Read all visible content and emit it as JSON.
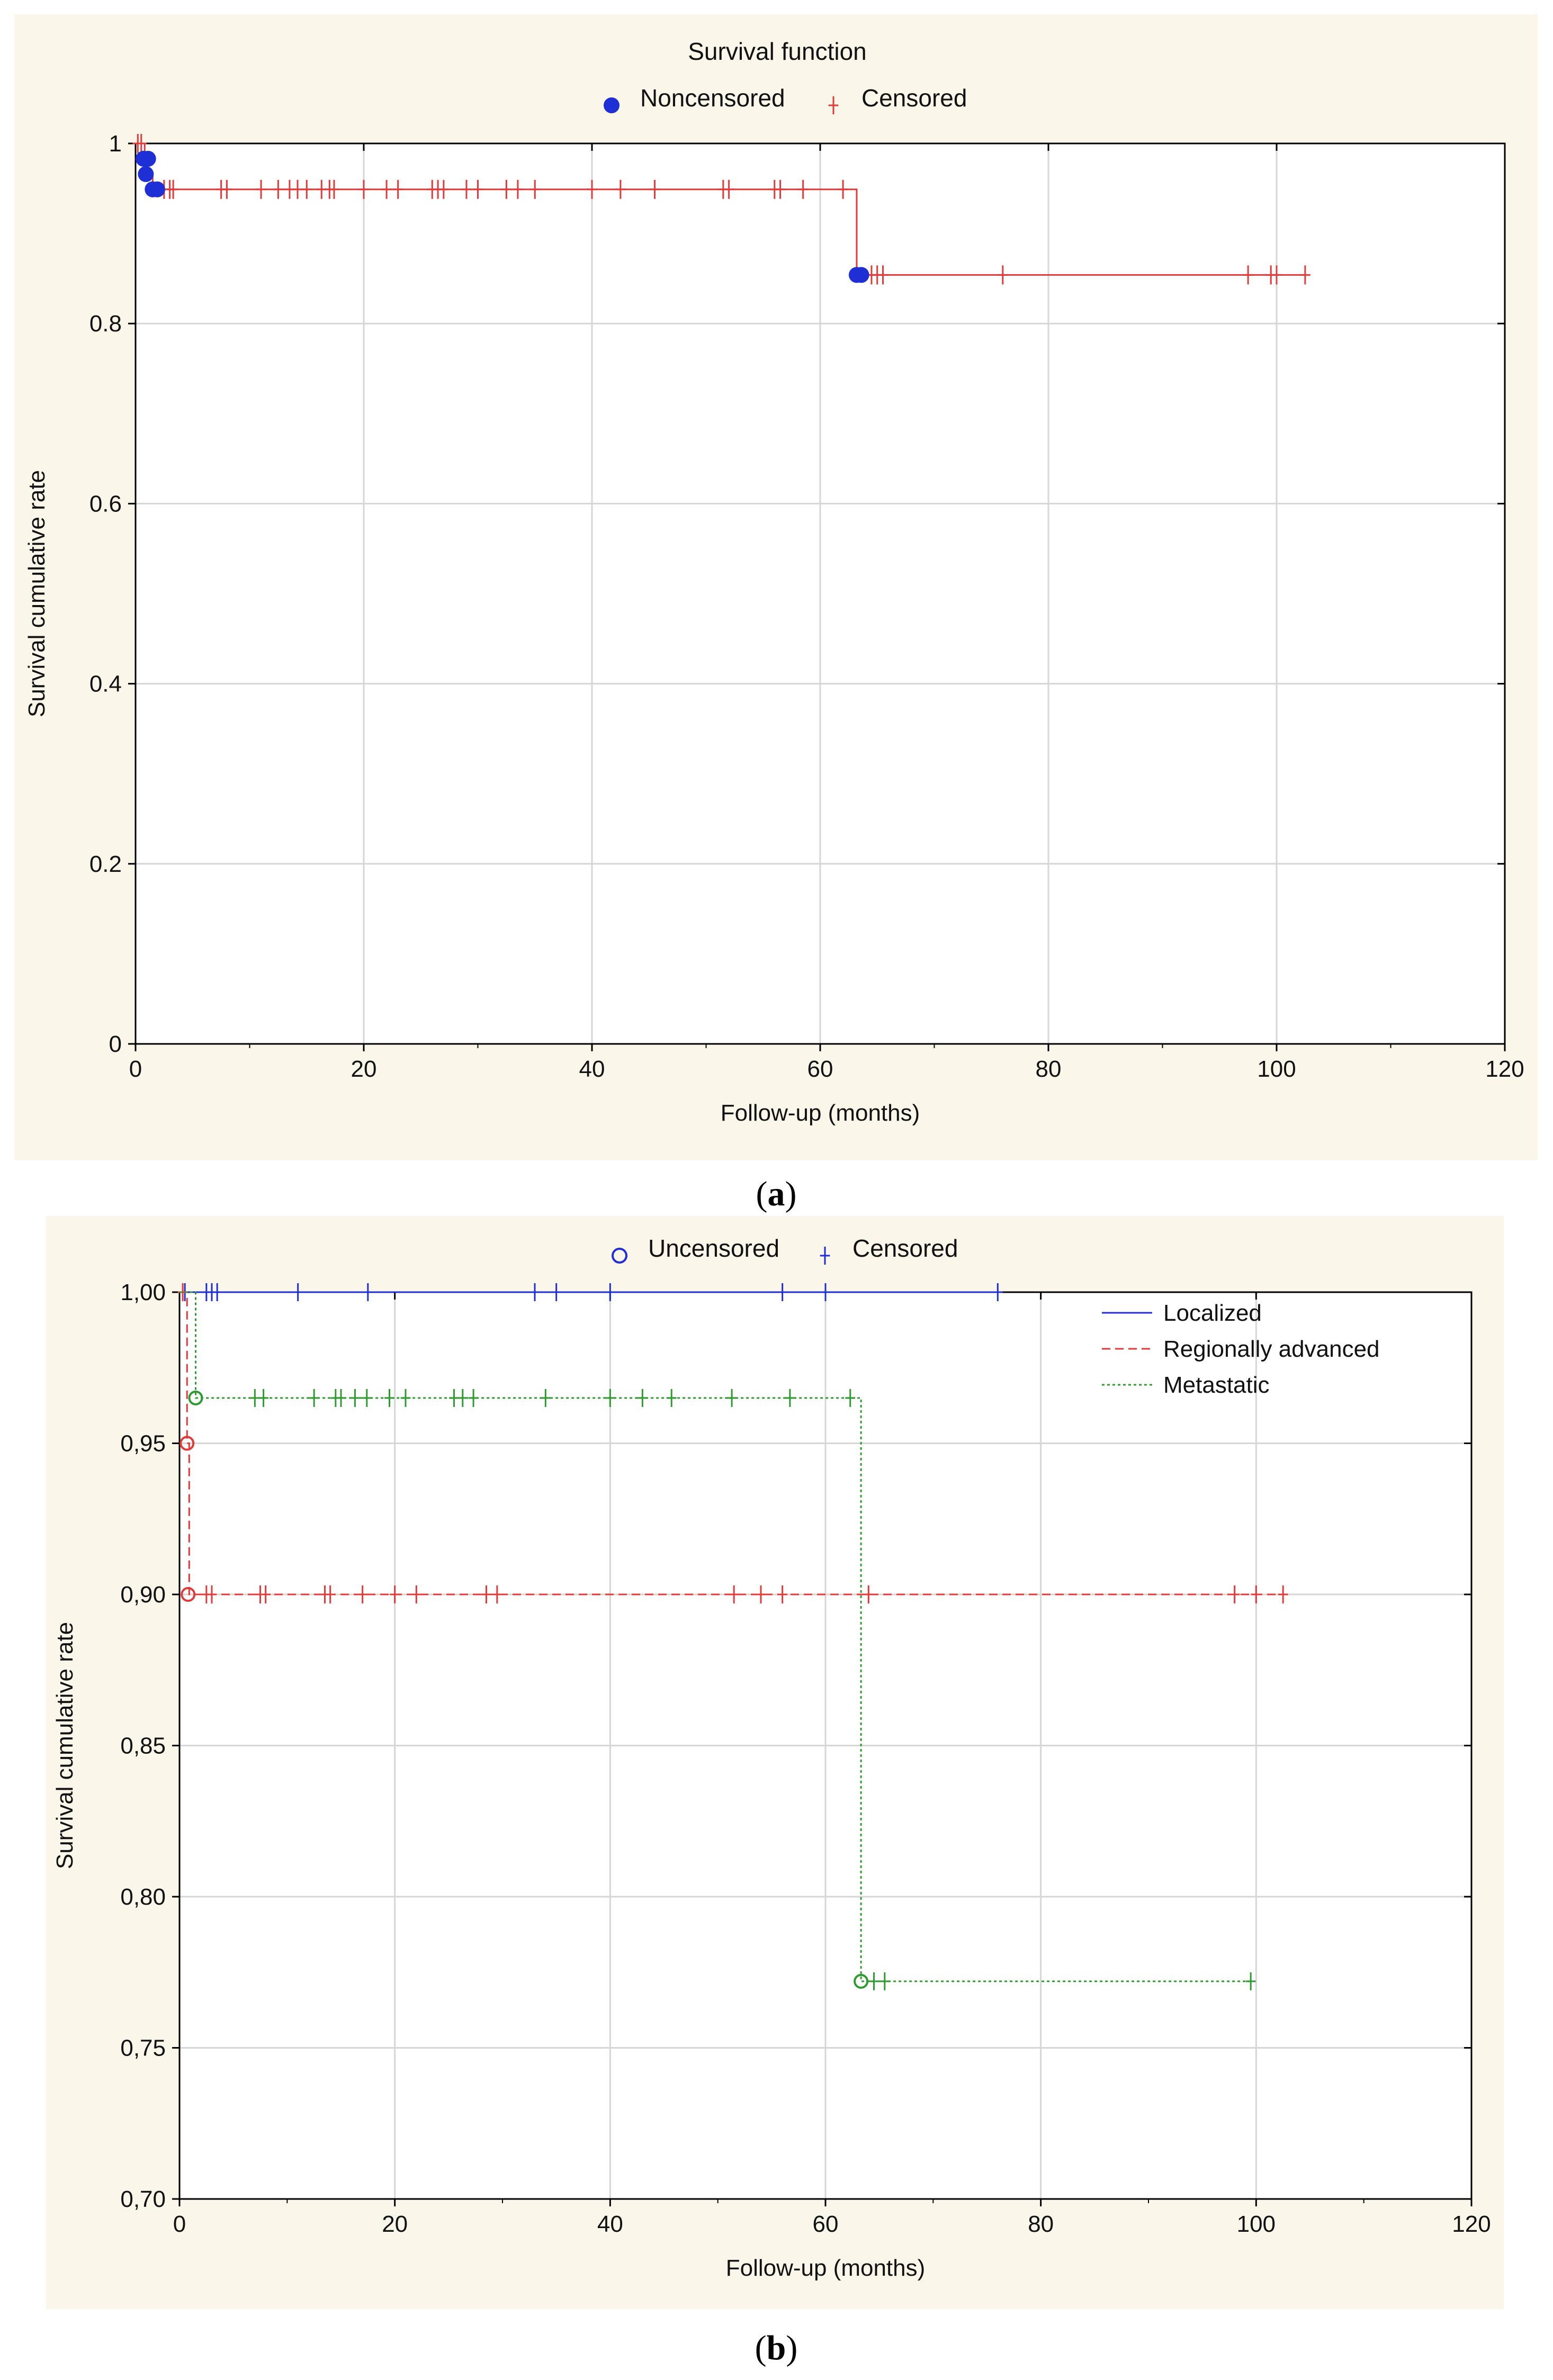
{
  "panel_a": {
    "caption_open": "(",
    "caption_letter": "a",
    "caption_close": ")"
  },
  "panel_b": {
    "caption_open": "(",
    "caption_letter": "b",
    "caption_close": ")"
  },
  "chart_data": [
    {
      "type": "line",
      "subtype": "kaplan-meier-survival",
      "title": "Survival function",
      "xlabel": "Follow-up (months)",
      "ylabel": "Survival cumulative rate",
      "xlim": [
        0,
        120
      ],
      "ylim": [
        0,
        1
      ],
      "x_ticks": [
        0,
        20,
        40,
        60,
        80,
        100,
        120
      ],
      "x_tick_labels": [
        "0",
        "20",
        "40",
        "60",
        "80",
        "100",
        "120"
      ],
      "y_ticks": [
        0,
        0.2,
        0.4,
        0.6,
        0.8,
        1
      ],
      "y_tick_labels": [
        "0",
        "0.2",
        "0.4",
        "0.6",
        "0.8",
        "1"
      ],
      "grid": true,
      "legend_position": "top-center",
      "legend": [
        {
          "label": "Noncensored",
          "marker": "filled-circle",
          "color": "#1f2fd6"
        },
        {
          "label": "Censored",
          "marker": "plus",
          "color": "#e03a3a"
        }
      ],
      "series": [
        {
          "line_color": "#e03a3a",
          "step": {
            "x": [
              0,
              0.8,
              1.5,
              63.2,
              102.5
            ],
            "y": [
              1.0,
              0.966,
              0.949,
              0.854,
              0.854
            ]
          },
          "noncensored": {
            "color": "#1f2fd6",
            "points": [
              [
                0.7,
                0.983
              ],
              [
                0.9,
                0.966
              ],
              [
                1.1,
                0.983
              ],
              [
                1.5,
                0.949
              ],
              [
                1.9,
                0.949
              ],
              [
                63.2,
                0.854
              ],
              [
                63.6,
                0.854
              ]
            ]
          },
          "censored": {
            "color": "#e03a3a",
            "points": [
              [
                0.2,
                1.0
              ],
              [
                0.5,
                1.0
              ],
              [
                2.5,
                0.949
              ],
              [
                3.0,
                0.949
              ],
              [
                3.3,
                0.949
              ],
              [
                7.5,
                0.949
              ],
              [
                8.0,
                0.949
              ],
              [
                11,
                0.949
              ],
              [
                12.5,
                0.949
              ],
              [
                13.5,
                0.949
              ],
              [
                14.2,
                0.949
              ],
              [
                15,
                0.949
              ],
              [
                16.3,
                0.949
              ],
              [
                17,
                0.949
              ],
              [
                17.4,
                0.949
              ],
              [
                20,
                0.949
              ],
              [
                22,
                0.949
              ],
              [
                23,
                0.949
              ],
              [
                26,
                0.949
              ],
              [
                26.5,
                0.949
              ],
              [
                27,
                0.949
              ],
              [
                29,
                0.949
              ],
              [
                30,
                0.949
              ],
              [
                32.5,
                0.949
              ],
              [
                33.5,
                0.949
              ],
              [
                35,
                0.949
              ],
              [
                40,
                0.949
              ],
              [
                42.5,
                0.949
              ],
              [
                45.5,
                0.949
              ],
              [
                51.5,
                0.949
              ],
              [
                52,
                0.949
              ],
              [
                56,
                0.949
              ],
              [
                56.5,
                0.949
              ],
              [
                58.5,
                0.949
              ],
              [
                62,
                0.949
              ],
              [
                64.5,
                0.854
              ],
              [
                65,
                0.854
              ],
              [
                65.5,
                0.854
              ],
              [
                76,
                0.854
              ],
              [
                97.5,
                0.854
              ],
              [
                99.5,
                0.854
              ],
              [
                100,
                0.854
              ],
              [
                102.5,
                0.854
              ]
            ]
          }
        }
      ]
    },
    {
      "type": "line",
      "subtype": "kaplan-meier-survival",
      "xlabel": "Follow-up (months)",
      "ylabel": "Survival cumulative rate",
      "xlim": [
        0,
        120
      ],
      "ylim": [
        0.7,
        1.0
      ],
      "x_ticks": [
        0,
        20,
        40,
        60,
        80,
        100,
        120
      ],
      "x_tick_labels": [
        "0",
        "20",
        "40",
        "60",
        "80",
        "100",
        "120"
      ],
      "y_ticks": [
        0.7,
        0.75,
        0.8,
        0.85,
        0.9,
        0.95,
        1.0
      ],
      "y_tick_labels": [
        "0,70",
        "0,75",
        "0,80",
        "0,85",
        "0,90",
        "0,95",
        "1,00"
      ],
      "grid": true,
      "top_legend": [
        {
          "label": "Uncensored",
          "marker": "open-circle",
          "color": "#1f2fd6"
        },
        {
          "label": "Censored",
          "marker": "plus",
          "color": "#1f2fd6"
        }
      ],
      "legend_position": "top-right",
      "series": [
        {
          "name": "Localized",
          "color": "#1f2fd6",
          "dash": "solid",
          "step": {
            "x": [
              0,
              76
            ],
            "y": [
              1.0,
              1.0
            ]
          },
          "uncensored": [],
          "censored": [
            [
              0.5,
              1.0
            ],
            [
              2.5,
              1.0
            ],
            [
              3,
              1.0
            ],
            [
              3.5,
              1.0
            ],
            [
              11,
              1.0
            ],
            [
              17.5,
              1.0
            ],
            [
              33,
              1.0
            ],
            [
              35,
              1.0
            ],
            [
              40,
              1.0
            ],
            [
              56,
              1.0
            ],
            [
              60,
              1.0
            ],
            [
              76,
              1.0
            ]
          ]
        },
        {
          "name": "Regionally advanced",
          "color": "#e03a3a",
          "dash": "dashed",
          "step": {
            "x": [
              0,
              0.7,
              0.9,
              102.5
            ],
            "y": [
              1.0,
              0.95,
              0.9,
              0.9
            ]
          },
          "uncensored": [
            [
              0.7,
              0.95
            ],
            [
              0.8,
              0.9
            ]
          ],
          "censored": [
            [
              0.3,
              1.0
            ],
            [
              2.5,
              0.9
            ],
            [
              3,
              0.9
            ],
            [
              7.5,
              0.9
            ],
            [
              8,
              0.9
            ],
            [
              13.5,
              0.9
            ],
            [
              14,
              0.9
            ],
            [
              17,
              0.9
            ],
            [
              20,
              0.9
            ],
            [
              22,
              0.9
            ],
            [
              28.5,
              0.9
            ],
            [
              29.5,
              0.9
            ],
            [
              51.5,
              0.9
            ],
            [
              54,
              0.9
            ],
            [
              56,
              0.9
            ],
            [
              64,
              0.9
            ],
            [
              98,
              0.9
            ],
            [
              100,
              0.9
            ],
            [
              102.5,
              0.9
            ]
          ]
        },
        {
          "name": "Metastatic",
          "color": "#2e9b2e",
          "dash": "dotted",
          "step": {
            "x": [
              0,
              1.5,
              63.3,
              99.5
            ],
            "y": [
              1.0,
              0.965,
              0.772,
              0.772
            ]
          },
          "uncensored": [
            [
              1.5,
              0.965
            ],
            [
              63.3,
              0.772
            ]
          ],
          "censored": [
            [
              7,
              0.965
            ],
            [
              7.8,
              0.965
            ],
            [
              12.5,
              0.965
            ],
            [
              14.5,
              0.965
            ],
            [
              15,
              0.965
            ],
            [
              16.3,
              0.965
            ],
            [
              17.4,
              0.965
            ],
            [
              19.5,
              0.965
            ],
            [
              21,
              0.965
            ],
            [
              25.5,
              0.965
            ],
            [
              26.3,
              0.965
            ],
            [
              27.3,
              0.965
            ],
            [
              34,
              0.965
            ],
            [
              40,
              0.965
            ],
            [
              43,
              0.965
            ],
            [
              45.7,
              0.965
            ],
            [
              51.3,
              0.965
            ],
            [
              56.7,
              0.965
            ],
            [
              62.3,
              0.965
            ],
            [
              64.5,
              0.772
            ],
            [
              65.5,
              0.772
            ],
            [
              99.5,
              0.772
            ]
          ]
        }
      ]
    }
  ]
}
